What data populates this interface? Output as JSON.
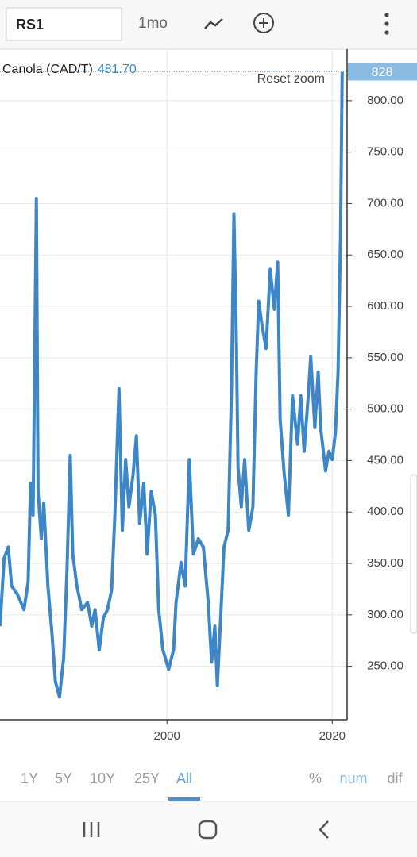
{
  "toolbar": {
    "symbol": "RS1",
    "interval": "1mo"
  },
  "range_tabs": [
    "1Y",
    "5Y",
    "10Y",
    "25Y",
    "All"
  ],
  "active_tab": 4,
  "mode_tabs": [
    "%",
    "num",
    "dif"
  ],
  "legend": {
    "name": "Canola (CAD/T)",
    "value": "481.70"
  },
  "reset_zoom": "Reset zoom",
  "chart_data": {
    "type": "line",
    "x": [
      1979.8,
      1980.3,
      1980.8,
      1981.2,
      1981.9,
      1982.7,
      1983.2,
      1983.5,
      1983.8,
      1984.2,
      1984.4,
      1984.8,
      1985.1,
      1985.6,
      1986.1,
      1986.5,
      1987.0,
      1987.5,
      1987.9,
      1988.3,
      1988.6,
      1989.1,
      1989.7,
      1990.4,
      1990.9,
      1991.3,
      1991.8,
      1992.3,
      1992.8,
      1993.3,
      1993.7,
      1994.2,
      1994.6,
      1995.0,
      1995.4,
      1995.9,
      1996.3,
      1996.7,
      1997.2,
      1997.6,
      1998.1,
      1998.6,
      1999.0,
      1999.5,
      2000.2,
      2000.8,
      2001.1,
      2001.7,
      2002.2,
      2002.7,
      2003.2,
      2003.8,
      2004.4,
      2005.0,
      2005.4,
      2005.8,
      2006.1,
      2006.5,
      2006.9,
      2007.4,
      2007.8,
      2008.1,
      2008.4,
      2008.6,
      2009.0,
      2009.4,
      2009.9,
      2010.4,
      2010.8,
      2011.1,
      2011.5,
      2012.0,
      2012.5,
      2013.0,
      2013.4,
      2013.7,
      2014.2,
      2014.7,
      2015.2,
      2015.8,
      2016.2,
      2016.6,
      2017.1,
      2017.4,
      2017.9,
      2018.3,
      2018.6,
      2019.2,
      2019.6,
      2020.0,
      2020.4,
      2020.7,
      2021.0,
      2021.2
    ],
    "series": [
      {
        "name": "Canola (CAD/T)",
        "color": "#3d87c9",
        "values": [
          289,
          355,
          366,
          328,
          320,
          305,
          332,
          428,
          397,
          705,
          420,
          374,
          409,
          328,
          281,
          235,
          220,
          258,
          343,
          455,
          359,
          328,
          305,
          312,
          289,
          305,
          266,
          297,
          305,
          324,
          397,
          520,
          382,
          451,
          405,
          436,
          474,
          389,
          428,
          359,
          420,
          397,
          305,
          266,
          247,
          266,
          312,
          351,
          328,
          451,
          359,
          374,
          366,
          312,
          254,
          289,
          231,
          297,
          366,
          382,
          513,
          690,
          567,
          443,
          405,
          451,
          382,
          405,
          536,
          605,
          582,
          559,
          636,
          597,
          643,
          490,
          436,
          397,
          513,
          466,
          513,
          459,
          513,
          551,
          482,
          536,
          482,
          440,
          459,
          451,
          478,
          536,
          667,
          828
        ]
      }
    ],
    "last_value": 828,
    "xlim": [
      1979.8,
      2021.8
    ],
    "xticks": [
      2000,
      2020
    ],
    "ylim": [
      198,
      840
    ],
    "yticks": [
      {
        "value": 250,
        "label": "250.00"
      },
      {
        "value": 300,
        "label": "300.00"
      },
      {
        "value": 350,
        "label": "350.00"
      },
      {
        "value": 400,
        "label": "400.00"
      },
      {
        "value": 450,
        "label": "450.00"
      },
      {
        "value": 500,
        "label": "500.00"
      },
      {
        "value": 550,
        "label": "550.00"
      },
      {
        "value": 600,
        "label": "600.00"
      },
      {
        "value": 650,
        "label": "650.00"
      },
      {
        "value": 700,
        "label": "700.00"
      },
      {
        "value": 750,
        "label": "750.00"
      },
      {
        "value": 800,
        "label": "800.00"
      }
    ],
    "grid": true
  }
}
